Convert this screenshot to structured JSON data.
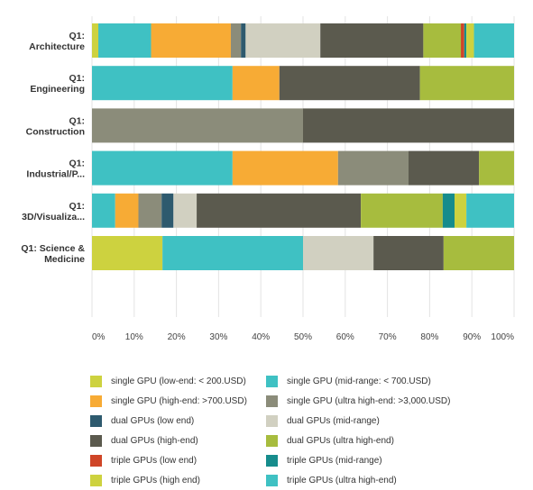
{
  "chart_data": {
    "type": "bar",
    "orientation": "horizontal",
    "stacked": true,
    "normalized": true,
    "categories": [
      "Q1: Architecture",
      "Q1: Engineering",
      "Q1: Construction",
      "Q1: Industrial/P...",
      "Q1: 3D/Visualiza...",
      "Q1: Science & Medicine"
    ],
    "category_lines": [
      [
        "Q1:",
        "Architecture"
      ],
      [
        "Q1:",
        "Engineering"
      ],
      [
        "Q1:",
        "Construction"
      ],
      [
        "Q1:",
        "Industrial/P..."
      ],
      [
        "Q1:",
        "3D/Visualiza..."
      ],
      [
        "Q1: Science &",
        "Medicine"
      ]
    ],
    "x_ticks": [
      "0%",
      "10%",
      "20%",
      "30%",
      "40%",
      "50%",
      "60%",
      "70%",
      "80%",
      "90%",
      "100%"
    ],
    "xlim": [
      0,
      100
    ],
    "legend_position": "bottom",
    "series": [
      {
        "name": "single GPU (low-end: < 200.USD)",
        "color": "#cdd23f",
        "values": [
          1.5,
          0,
          0,
          0,
          0,
          16.7
        ]
      },
      {
        "name": "single GPU (mid-range: < 700.USD)",
        "color": "#3fc1c3",
        "values": [
          12.5,
          33.3,
          0,
          33.3,
          5.5,
          33.3
        ]
      },
      {
        "name": "single GPU (high-end: >700.USD)",
        "color": "#f7ab35",
        "values": [
          18.9,
          11.1,
          0,
          25.0,
          5.5,
          0
        ]
      },
      {
        "name": "single GPU (ultra high-end: >3,000.USD)",
        "color": "#8b8c7a",
        "values": [
          2.4,
          0,
          50.0,
          16.7,
          5.5,
          0
        ]
      },
      {
        "name": "dual GPUs (low end)",
        "color": "#2e5a6e",
        "values": [
          1.1,
          0,
          0,
          0,
          2.8,
          0
        ]
      },
      {
        "name": "dual GPUs (mid-range)",
        "color": "#d1d0c1",
        "values": [
          17.7,
          0,
          0,
          0,
          5.5,
          16.7
        ]
      },
      {
        "name": "dual GPUs (high-end)",
        "color": "#5b5a4e",
        "values": [
          24.4,
          33.3,
          50.0,
          16.7,
          38.9,
          16.6
        ]
      },
      {
        "name": "dual GPUs (ultra high-end)",
        "color": "#a7bc3e",
        "values": [
          8.9,
          22.3,
          0,
          8.3,
          19.4,
          16.7
        ]
      },
      {
        "name": "triple GPUs (low end)",
        "color": "#cf4527",
        "values": [
          0.8,
          0,
          0,
          0,
          0,
          0
        ]
      },
      {
        "name": "triple GPUs (mid-range)",
        "color": "#168c8c",
        "values": [
          0.5,
          0,
          0,
          0,
          2.8,
          0
        ]
      },
      {
        "name": "triple GPUs (high end)",
        "color": "#cdd23f",
        "values": [
          1.8,
          0,
          0,
          0,
          2.8,
          0
        ]
      },
      {
        "name": "triple GPUs (ultra high-end)",
        "color": "#3fc1c3",
        "values": [
          9.5,
          0,
          0,
          0,
          11.3,
          0
        ]
      }
    ]
  }
}
